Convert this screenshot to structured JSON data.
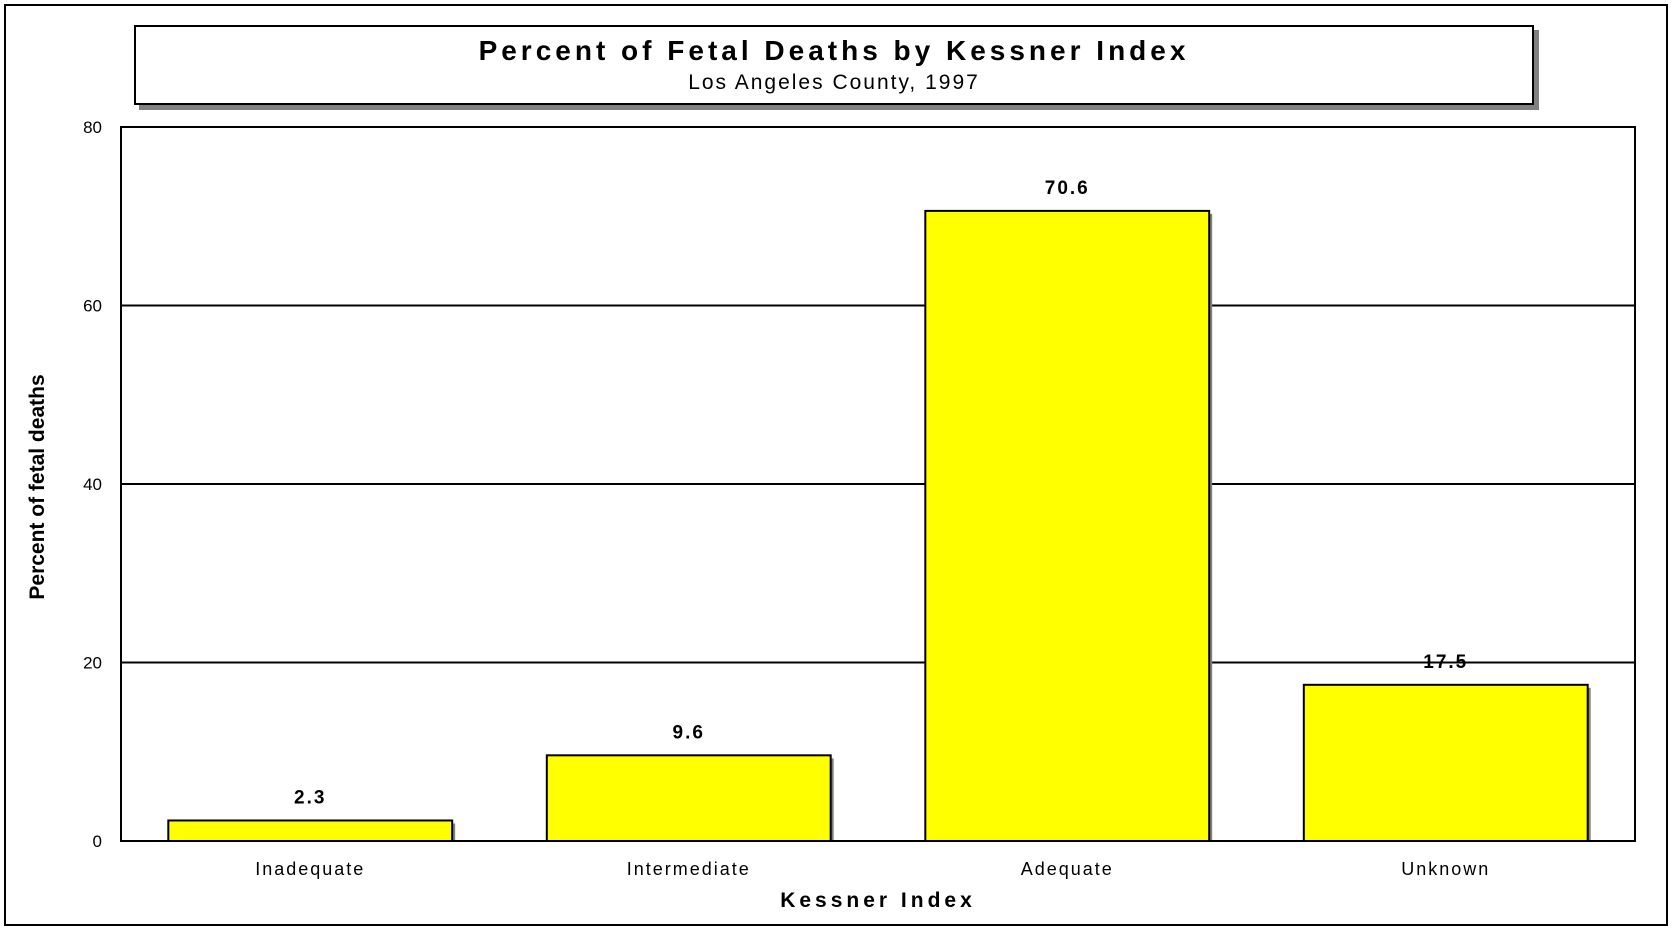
{
  "chart_data": {
    "type": "bar",
    "title": "Percent of Fetal Deaths by Kessner Index",
    "subtitle": "Los Angeles County, 1997",
    "xlabel": "Kessner Index",
    "ylabel": "Percent of fetal deaths",
    "categories": [
      "Inadequate",
      "Intermediate",
      "Adequate",
      "Unknown"
    ],
    "values": [
      2.3,
      9.6,
      70.6,
      17.5
    ],
    "data_labels": [
      "2.3",
      "9.6",
      "70.6",
      "17.5"
    ],
    "ylim": [
      0,
      80
    ],
    "yticks": [
      0,
      20,
      40,
      60,
      80
    ],
    "ytick_labels": [
      "0",
      "20",
      "40",
      "60",
      "80"
    ],
    "grid": true,
    "legend": "none",
    "bar_color": "#ffff00"
  }
}
